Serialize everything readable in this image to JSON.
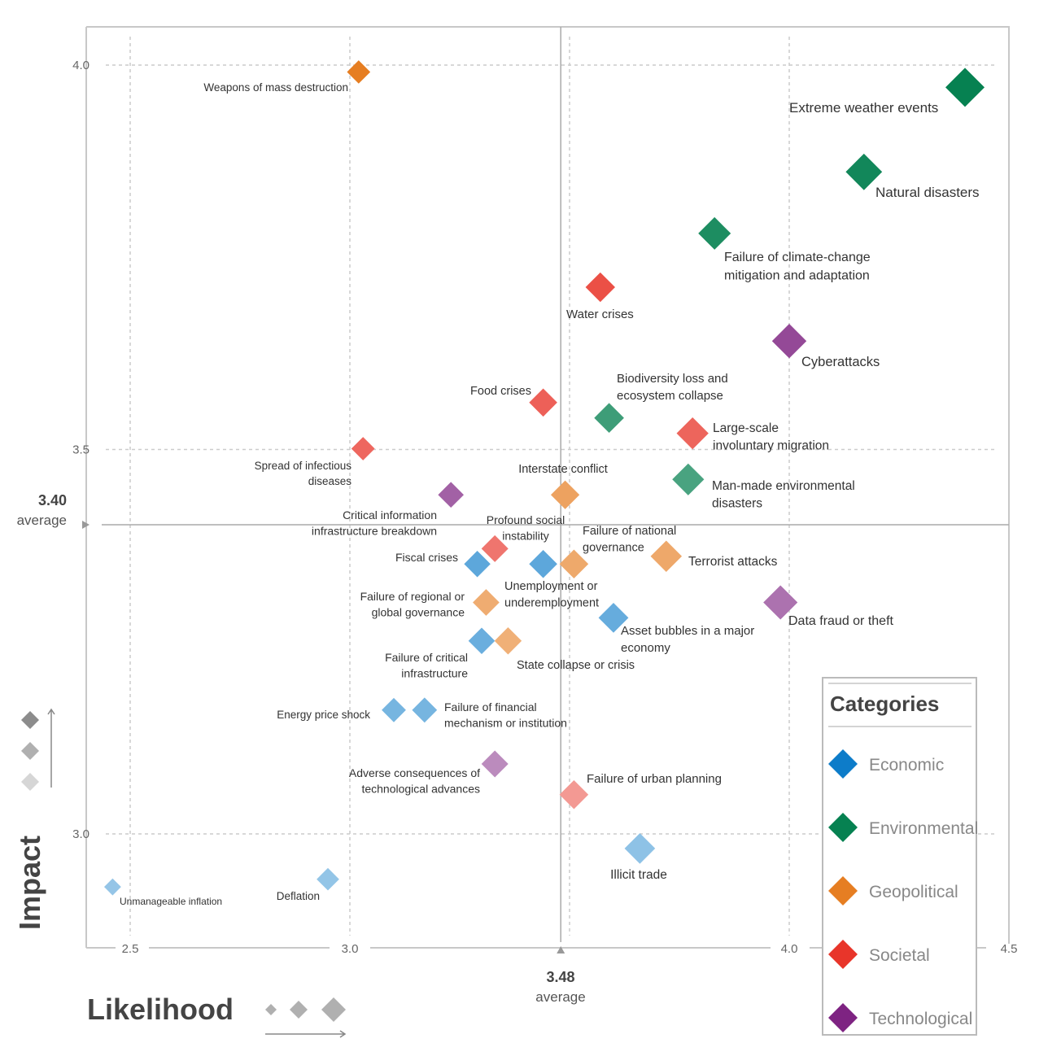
{
  "chart_data": {
    "type": "scatter",
    "xlabel": "Likelihood",
    "ylabel": "Impact",
    "xlim": [
      2.4,
      4.5
    ],
    "ylim": [
      2.85,
      4.05
    ],
    "x_ticks": [
      "2.5",
      "3.0",
      "4.0",
      "4.5"
    ],
    "y_ticks": [
      "4.0",
      "3.5",
      "3.0"
    ],
    "grid": true,
    "x_average": {
      "value": "3.48",
      "label": "average"
    },
    "y_average": {
      "value": "3.40",
      "label": "average"
    },
    "legend": {
      "title": "Categories",
      "placement": "bottom-right",
      "entries": [
        {
          "name": "Economic",
          "color": "#0d7cc9"
        },
        {
          "name": "Environmental",
          "color": "#068151"
        },
        {
          "name": "Geopolitical",
          "color": "#e67e22"
        },
        {
          "name": "Societal",
          "color": "#e8352a"
        },
        {
          "name": "Technological",
          "color": "#7e2382"
        }
      ]
    },
    "points": [
      {
        "label": [
          "Weapons of mass destruction"
        ],
        "category": "Geopolitical",
        "x": 3.02,
        "y": 3.99
      },
      {
        "label": [
          "Extreme weather events"
        ],
        "category": "Environmental",
        "x": 4.4,
        "y": 3.97
      },
      {
        "label": [
          "Natural disasters"
        ],
        "category": "Environmental",
        "x": 4.17,
        "y": 3.86
      },
      {
        "label": [
          "Failure of climate-change",
          "mitigation and adaptation"
        ],
        "category": "Environmental",
        "x": 3.83,
        "y": 3.78
      },
      {
        "label": [
          "Water crises"
        ],
        "category": "Societal",
        "x": 3.57,
        "y": 3.71
      },
      {
        "label": [
          "Cyberattacks"
        ],
        "category": "Technological",
        "x": 4.0,
        "y": 3.64
      },
      {
        "label": [
          "Food crises"
        ],
        "category": "Societal",
        "x": 3.44,
        "y": 3.56
      },
      {
        "label": [
          "Biodiversity loss and",
          "ecosystem collapse"
        ],
        "category": "Environmental",
        "x": 3.59,
        "y": 3.54
      },
      {
        "label": [
          "Large-scale",
          "involuntary migration"
        ],
        "category": "Societal",
        "x": 3.78,
        "y": 3.52
      },
      {
        "label": [
          "Spread of infectious",
          "diseases"
        ],
        "category": "Societal",
        "x": 3.03,
        "y": 3.5
      },
      {
        "label": [
          "Man-made environmental",
          "disasters"
        ],
        "category": "Environmental",
        "x": 3.77,
        "y": 3.46
      },
      {
        "label": [
          "Interstate conflict"
        ],
        "category": "Geopolitical",
        "x": 3.49,
        "y": 3.44
      },
      {
        "label": [
          "Critical information",
          "infrastructure breakdown"
        ],
        "category": "Technological",
        "x": 3.23,
        "y": 3.44
      },
      {
        "label": [
          "Fiscal crises"
        ],
        "category": "Economic",
        "x": 3.29,
        "y": 3.35
      },
      {
        "label": [
          "Profound social",
          "instability"
        ],
        "category": "Societal",
        "x": 3.33,
        "y": 3.37
      },
      {
        "label": [
          "Unemployment or",
          "underemployment"
        ],
        "category": "Economic",
        "x": 3.44,
        "y": 3.35
      },
      {
        "label": [
          "Failure of national",
          "governance"
        ],
        "category": "Geopolitical",
        "x": 3.51,
        "y": 3.35
      },
      {
        "label": [
          "Terrorist attacks"
        ],
        "category": "Geopolitical",
        "x": 3.72,
        "y": 3.36
      },
      {
        "label": [
          "Data fraud or theft"
        ],
        "category": "Technological",
        "x": 3.98,
        "y": 3.3
      },
      {
        "label": [
          "Failure of regional or",
          "global governance"
        ],
        "category": "Geopolitical",
        "x": 3.31,
        "y": 3.3
      },
      {
        "label": [
          "Asset bubbles in a major",
          "economy"
        ],
        "category": "Economic",
        "x": 3.6,
        "y": 3.28
      },
      {
        "label": [
          "Failure of critical",
          "infrastructure"
        ],
        "category": "Economic",
        "x": 3.3,
        "y": 3.25
      },
      {
        "label": [
          "State collapse or crisis"
        ],
        "category": "Geopolitical",
        "x": 3.36,
        "y": 3.25
      },
      {
        "label": [
          "Energy price shock"
        ],
        "category": "Economic",
        "x": 3.1,
        "y": 3.16
      },
      {
        "label": [
          "Failure of financial",
          "mechanism or institution"
        ],
        "category": "Economic",
        "x": 3.17,
        "y": 3.16
      },
      {
        "label": [
          "Adverse consequences of",
          "technological advances"
        ],
        "category": "Technological",
        "x": 3.33,
        "y": 3.09
      },
      {
        "label": [
          "Failure of urban planning"
        ],
        "category": "Societal",
        "x": 3.51,
        "y": 3.05
      },
      {
        "label": [
          "Illicit trade"
        ],
        "category": "Economic",
        "x": 3.66,
        "y": 2.98
      },
      {
        "label": [
          "Deflation"
        ],
        "category": "Economic",
        "x": 2.95,
        "y": 2.94
      },
      {
        "label": [
          "Unmanageable inflation"
        ],
        "category": "Economic",
        "x": 2.46,
        "y": 2.93
      }
    ]
  }
}
